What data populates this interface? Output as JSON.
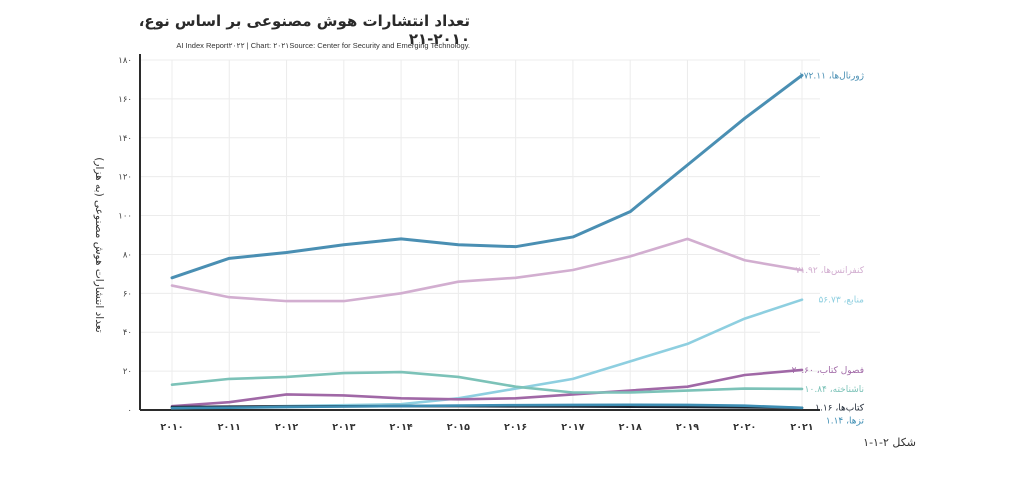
{
  "header": {
    "title": "تعداد انتشارات هوش مصنوعی بر اساس نوع، ۲۰۱۰-۲۱",
    "source": "AI Index Report۲۰۲۲ | Chart: ۲۰۲۱Source: Center for Security and Emerging Technology."
  },
  "caption": "شکل ۲-۱-۱",
  "chart_data": {
    "type": "line",
    "title": "تعداد انتشارات هوش مصنوعی بر اساس نوع، ۲۰۱۰-۲۱",
    "ylabel": "تعداد انتشارات هوش مصنوعی (به هزار)",
    "xlabel": "",
    "ylim": [
      0,
      180
    ],
    "grid": true,
    "legend": "inline-right",
    "x": [
      2010,
      2011,
      2012,
      2013,
      2014,
      2015,
      2016,
      2017,
      2018,
      2019,
      2020,
      2021
    ],
    "x_tick_labels": [
      "۲۰۱۰",
      "۲۰۱۱",
      "۲۰۱۲",
      "۲۰۱۳",
      "۲۰۱۴",
      "۲۰۱۵",
      "۲۰۱۶",
      "۲۰۱۷",
      "۲۰۱۸",
      "۲۰۱۹",
      "۲۰۲۰",
      "۲۰۲۱"
    ],
    "y_ticks": [
      0,
      20,
      40,
      60,
      80,
      100,
      120,
      140,
      160,
      180
    ],
    "y_tick_labels": [
      "۰",
      "۲۰",
      "۴۰",
      "۶۰",
      "۸۰",
      "۱۰۰",
      "۱۲۰",
      "۱۴۰",
      "۱۶۰",
      "۱۸۰"
    ],
    "series": [
      {
        "label": "۱۷۲.۱۱ ،ژورنال‌ها",
        "color": "#4a8fb3",
        "values": [
          68,
          78,
          81,
          85,
          88,
          85,
          84,
          89,
          102,
          126,
          150,
          172.11
        ]
      },
      {
        "label": "۷۱.۹۲ ،کنفرانس‌ها",
        "color": "#d2aed0",
        "values": [
          64,
          58,
          56,
          56,
          60,
          66,
          68,
          72,
          79,
          88,
          77,
          71.92
        ]
      },
      {
        "label": "۵۶.۷۳ ،منابع",
        "color": "#8ecfe0",
        "values": [
          1,
          1.5,
          2,
          2.5,
          3,
          6,
          11,
          16,
          25,
          34,
          47,
          56.73
        ]
      },
      {
        "label": "۲۰.۶۰ ،فصول کتاب",
        "color": "#a068a6",
        "values": [
          2,
          4,
          8,
          7.5,
          6,
          5.5,
          6,
          8,
          10,
          12,
          18,
          20.6
        ]
      },
      {
        "label": "۱۰.۸۴ ،ناشناخته",
        "color": "#7cc2b8",
        "values": [
          13,
          16,
          17,
          19,
          19.5,
          17,
          12,
          9,
          9,
          10,
          11,
          10.84
        ]
      },
      {
        "label": "۱.۱۶ ،کتاب‌ها",
        "color": "#1c2532",
        "values": [
          1.5,
          1.7,
          1.8,
          1.9,
          2,
          2,
          1.9,
          1.8,
          1.7,
          1.6,
          1.4,
          1.16
        ]
      },
      {
        "label": "۱.۱۴ ،تزها",
        "color": "#3d8db3",
        "values": [
          1,
          1.2,
          1.5,
          1.8,
          2,
          2.3,
          2.5,
          2.6,
          2.7,
          2.6,
          2.2,
          1.14
        ]
      }
    ]
  }
}
